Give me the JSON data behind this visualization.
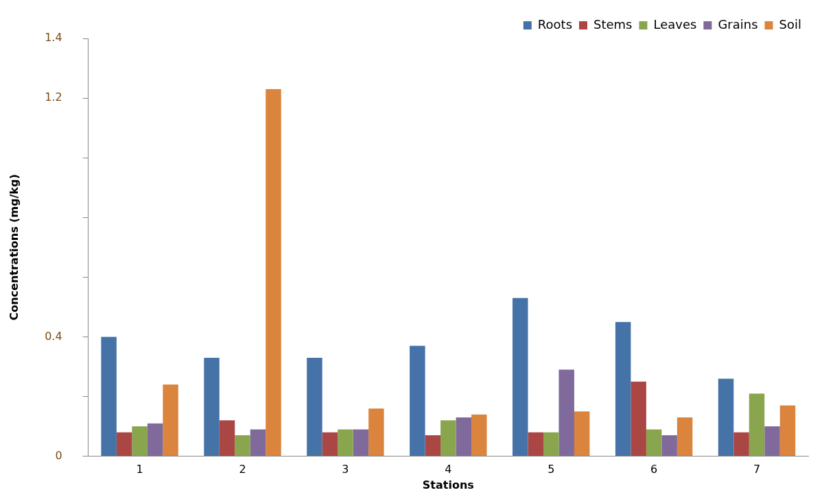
{
  "chart_data": {
    "type": "bar",
    "xlabel": "Stations",
    "ylabel": "Concentrations (mg/kg)",
    "categories": [
      "1",
      "2",
      "3",
      "4",
      "5",
      "6",
      "7"
    ],
    "series": [
      {
        "name": "Roots",
        "color": "#4572a7",
        "values": [
          0.4,
          0.33,
          0.33,
          0.37,
          0.53,
          0.45,
          0.26
        ]
      },
      {
        "name": "Stems",
        "color": "#aa4643",
        "values": [
          0.08,
          0.12,
          0.08,
          0.07,
          0.08,
          0.25,
          0.08
        ]
      },
      {
        "name": "Leaves",
        "color": "#89a54e",
        "values": [
          0.1,
          0.07,
          0.09,
          0.12,
          0.08,
          0.09,
          0.21
        ]
      },
      {
        "name": "Grains",
        "color": "#80699b",
        "values": [
          0.11,
          0.09,
          0.09,
          0.13,
          0.29,
          0.07,
          0.1
        ]
      },
      {
        "name": "Soil",
        "color": "#db843d",
        "values": [
          0.24,
          1.23,
          0.16,
          0.14,
          0.15,
          0.13,
          0.17
        ]
      }
    ],
    "ylim": [
      0,
      1.4
    ],
    "yticks": [
      0,
      {
        "value": 0.2,
        "label": null
      },
      0.4,
      {
        "value": 0.6,
        "label": null
      },
      {
        "value": 0.8,
        "label": null
      },
      {
        "value": 1.0,
        "label": null
      },
      1.2,
      1.4
    ],
    "grid": false,
    "legend": "top right"
  }
}
